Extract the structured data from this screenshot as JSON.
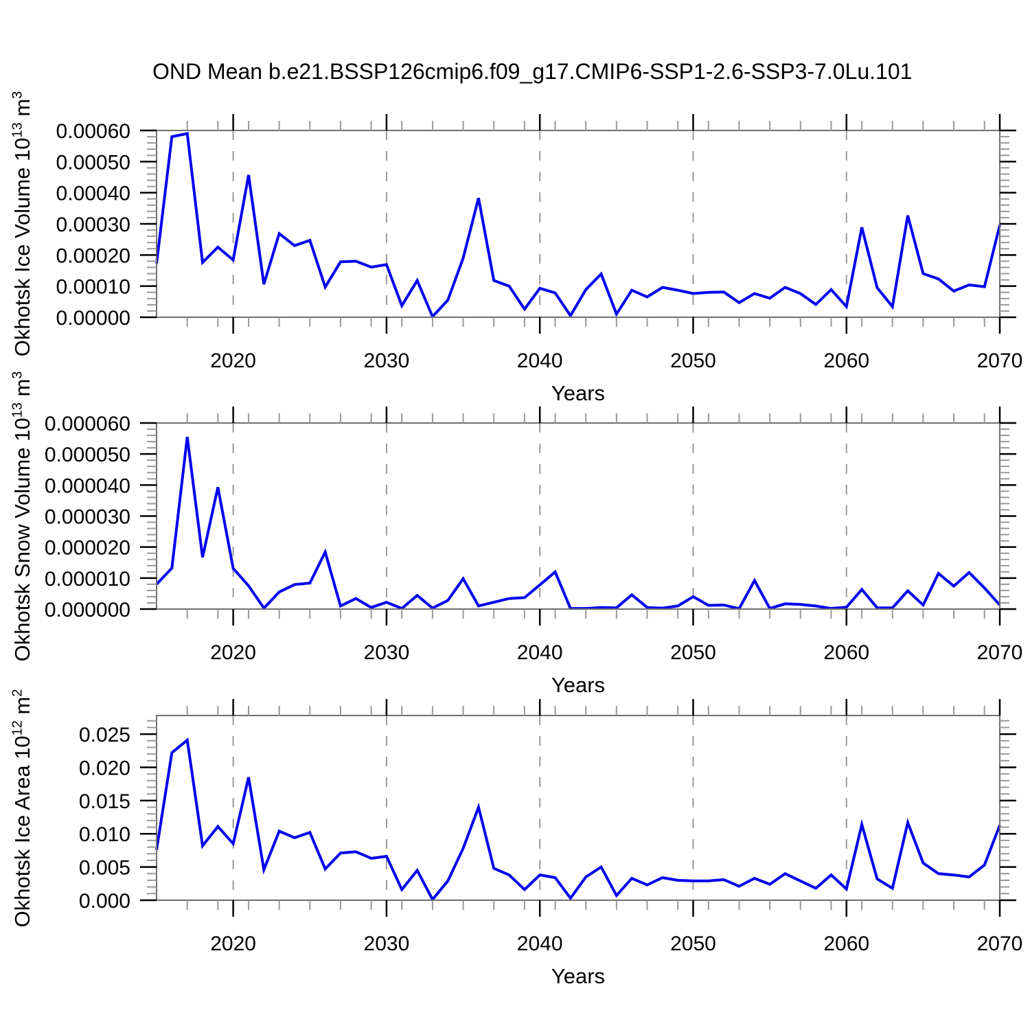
{
  "title": "OND Mean b.e21.BSSP126cmip6.f09_g17.CMIP6-SSP1-2.6-SSP3-7.0Lu.101",
  "colors": {
    "line": "#0000ee",
    "frame": "#6e6e6e",
    "major_tick": "#000000",
    "minor_tick": "#989898",
    "grid": "#999999",
    "text": "#000000"
  },
  "years": {
    "start": 2015,
    "end": 2070,
    "step": 1
  },
  "chart_data": [
    {
      "id": "ice-volume",
      "type": "line",
      "ylabel_segments": [
        {
          "t": "Okhotsk Ice Volume 10"
        },
        {
          "t": "13",
          "sup": true
        },
        {
          "t": " m"
        },
        {
          "t": "3",
          "sup": true
        }
      ],
      "xlabel": "Years",
      "xlim": [
        2015,
        2070
      ],
      "ylim": [
        0,
        0.0006
      ],
      "ytick_step": 0.0001,
      "ytick_labels": [
        "0.00000",
        "0.00010",
        "0.00020",
        "0.00030",
        "0.00040",
        "0.00050",
        "0.00060"
      ],
      "xticks": [
        2020,
        2030,
        2040,
        2050,
        2060,
        2070
      ],
      "xtick_labels": [
        "2020",
        "2030",
        "2040",
        "2050",
        "2060",
        "2070"
      ],
      "x_minor_step": 2,
      "grid_x": [
        2020,
        2030,
        2040,
        2050,
        2060
      ],
      "values": [
        0.000173,
        0.00058,
        0.00059,
        0.000176,
        0.000225,
        0.000184,
        0.000457,
        0.000106,
        0.000269,
        0.00023,
        0.000247,
        9.7e-05,
        0.000178,
        0.00018,
        0.000161,
        0.000169,
        3.7e-05,
        0.000118,
        2e-06,
        5.5e-05,
        0.00019,
        0.000383,
        0.000118,
        0.0001,
        2.6e-05,
        9.3e-05,
        7.8e-05,
        5e-06,
        8.9e-05,
        0.000139,
        1e-05,
        8.7e-05,
        6.5e-05,
        9.6e-05,
        8.7e-05,
        7.6e-05,
        8e-05,
        8.1e-05,
        4.7e-05,
        7.6e-05,
        6.1e-05,
        9.6e-05,
        7.6e-05,
        4.1e-05,
        8.9e-05,
        3.4e-05,
        0.000289,
        9.5e-05,
        3.4e-05,
        0.000327,
        0.00014,
        0.000123,
        8.4e-05,
        0.000104,
        9.8e-05,
        0.000296
      ]
    },
    {
      "id": "snow-volume",
      "type": "line",
      "ylabel_segments": [
        {
          "t": "Okhotsk Snow Volume 10"
        },
        {
          "t": "13",
          "sup": true
        },
        {
          "t": " m"
        },
        {
          "t": "3",
          "sup": true
        }
      ],
      "xlabel": "Years",
      "xlim": [
        2015,
        2070
      ],
      "ylim": [
        0,
        6e-05
      ],
      "ytick_step": 1e-05,
      "ytick_labels": [
        "0.000000",
        "0.000010",
        "0.000020",
        "0.000030",
        "0.000040",
        "0.000050",
        "0.000060"
      ],
      "xticks": [
        2020,
        2030,
        2040,
        2050,
        2060,
        2070
      ],
      "xtick_labels": [
        "2020",
        "2030",
        "2040",
        "2050",
        "2060",
        "2070"
      ],
      "x_minor_step": 2,
      "grid_x": [
        2020,
        2030,
        2040,
        2050,
        2060
      ],
      "values": [
        8e-06,
        1.32e-05,
        5.55e-05,
        1.67e-05,
        3.93e-05,
        1.31e-05,
        7.5e-06,
        3e-07,
        5.5e-06,
        7.9e-06,
        8.4e-06,
        1.84e-05,
        1e-06,
        3.4e-06,
        5e-07,
        2.2e-06,
        2e-07,
        4.4e-06,
        3e-07,
        2.8e-06,
        9.8e-06,
        1e-06,
        2.2e-06,
        3.4e-06,
        3.7e-06,
        7.8e-06,
        1.2e-05,
        2e-07,
        2e-07,
        5e-07,
        4e-07,
        4.6e-06,
        5e-07,
        3e-07,
        1e-06,
        4e-06,
        1.2e-06,
        1.3e-06,
        1e-07,
        9.2e-06,
        2e-07,
        1.7e-06,
        1.5e-06,
        1e-06,
        2e-07,
        6e-07,
        6.3e-06,
        4e-07,
        4e-07,
        5.9e-06,
        1.3e-06,
        1.15e-05,
        7.4e-06,
        1.18e-05,
        6.8e-06,
        1.3e-06
      ]
    },
    {
      "id": "ice-area",
      "type": "line",
      "ylabel_segments": [
        {
          "t": "Okhotsk Ice Area 10"
        },
        {
          "t": "12",
          "sup": true
        },
        {
          "t": " m"
        },
        {
          "t": "2",
          "sup": true
        }
      ],
      "xlabel": "Years",
      "xlim": [
        2015,
        2070
      ],
      "ylim": [
        0,
        0.0278
      ],
      "ytick_step": 0.005,
      "ytick_labels": [
        "0.000",
        "0.005",
        "0.010",
        "0.015",
        "0.020",
        "0.025"
      ],
      "xticks": [
        2020,
        2030,
        2040,
        2050,
        2060,
        2070
      ],
      "xtick_labels": [
        "2020",
        "2030",
        "2040",
        "2050",
        "2060",
        "2070"
      ],
      "x_minor_step": 2,
      "grid_x": [
        2020,
        2030,
        2040,
        2050,
        2060
      ],
      "values": [
        0.0076,
        0.0222,
        0.0241,
        0.0082,
        0.0111,
        0.0085,
        0.0185,
        0.0046,
        0.0104,
        0.0094,
        0.0102,
        0.0047,
        0.0071,
        0.0073,
        0.0063,
        0.0066,
        0.0016,
        0.0045,
        0.0001,
        0.0029,
        0.0078,
        0.014,
        0.0048,
        0.0038,
        0.0016,
        0.0038,
        0.0034,
        0.0003,
        0.0035,
        0.005,
        0.0007,
        0.0033,
        0.0023,
        0.0034,
        0.003,
        0.0029,
        0.0029,
        0.0031,
        0.0021,
        0.0033,
        0.0024,
        0.004,
        0.0029,
        0.0018,
        0.0038,
        0.0017,
        0.0114,
        0.0032,
        0.0018,
        0.0117,
        0.0056,
        0.004,
        0.0038,
        0.0035,
        0.0053,
        0.0113
      ]
    }
  ]
}
